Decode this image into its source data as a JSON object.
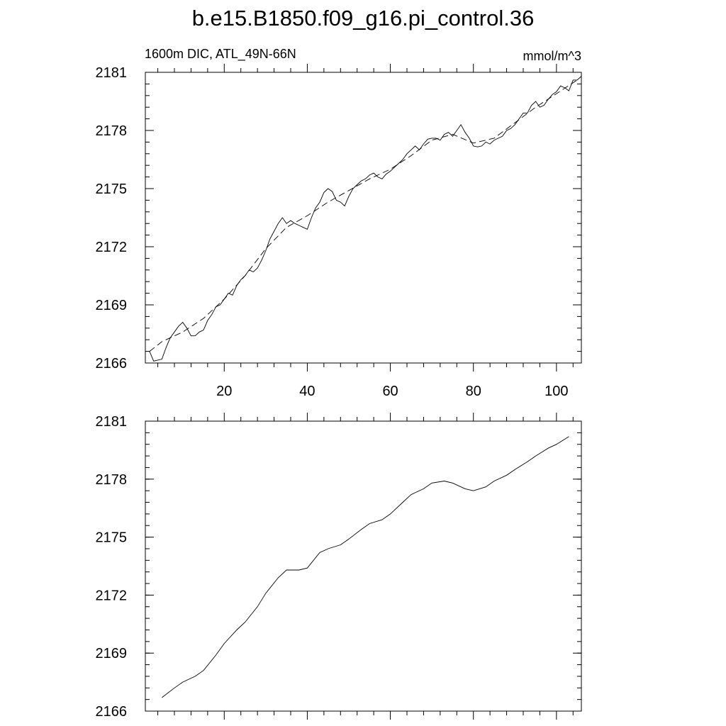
{
  "title": "b.e15.B1850.f09_g16.pi_control.36",
  "subtitle_left": "1600m DIC, ATL_49N-66N",
  "subtitle_right": "mmol/m^3",
  "chart_data": [
    {
      "type": "line",
      "title": "",
      "xlabel": "",
      "ylabel": "",
      "xlim": [
        1,
        106
      ],
      "ylim": [
        2166,
        2181
      ],
      "xticks": [
        20,
        40,
        60,
        80,
        100
      ],
      "yticks": [
        2166,
        2169,
        2172,
        2175,
        2178,
        2181
      ],
      "grid": false,
      "series": [
        {
          "style": "solid",
          "x": [
            2,
            3,
            4,
            5,
            6,
            7,
            8,
            9,
            10,
            11,
            12,
            13,
            14,
            15,
            16,
            17,
            18,
            19,
            20,
            21,
            22,
            23,
            24,
            25,
            26,
            27,
            28,
            29,
            30,
            31,
            32,
            33,
            34,
            35,
            36,
            37,
            38,
            39,
            40,
            41,
            42,
            43,
            44,
            45,
            46,
            47,
            48,
            49,
            50,
            51,
            52,
            53,
            54,
            55,
            56,
            57,
            58,
            59,
            60,
            61,
            62,
            63,
            64,
            65,
            66,
            67,
            68,
            69,
            70,
            71,
            72,
            73,
            74,
            75,
            76,
            77,
            78,
            79,
            80,
            81,
            82,
            83,
            84,
            85,
            86,
            87,
            88,
            89,
            90,
            91,
            92,
            93,
            94,
            95,
            96,
            97,
            98,
            99,
            100,
            101,
            102,
            103,
            104,
            105,
            106
          ],
          "y": [
            2166.6,
            2166.1,
            2166.15,
            2166.2,
            2166.8,
            2167.3,
            2167.6,
            2167.9,
            2168.1,
            2167.8,
            2167.4,
            2167.4,
            2167.6,
            2167.7,
            2168.2,
            2168.5,
            2168.9,
            2169.0,
            2169.3,
            2169.6,
            2169.5,
            2170.0,
            2170.3,
            2170.5,
            2170.8,
            2170.7,
            2170.9,
            2171.3,
            2171.8,
            2172.4,
            2172.8,
            2173.2,
            2173.5,
            2173.2,
            2173.35,
            2173.2,
            2173.1,
            2173.0,
            2172.9,
            2173.5,
            2174.0,
            2174.3,
            2174.8,
            2175.0,
            2174.85,
            2174.4,
            2174.3,
            2174.1,
            2174.6,
            2175.0,
            2175.2,
            2175.4,
            2175.5,
            2175.7,
            2175.8,
            2175.6,
            2175.5,
            2175.75,
            2175.9,
            2176.1,
            2176.3,
            2176.5,
            2176.8,
            2177.0,
            2177.2,
            2177.0,
            2177.3,
            2177.55,
            2177.6,
            2177.6,
            2177.5,
            2177.8,
            2177.9,
            2177.7,
            2178.0,
            2178.3,
            2177.9,
            2177.6,
            2177.2,
            2177.15,
            2177.2,
            2177.4,
            2177.3,
            2177.5,
            2177.6,
            2177.7,
            2178.0,
            2178.1,
            2178.3,
            2178.6,
            2178.9,
            2178.9,
            2179.3,
            2179.5,
            2179.2,
            2179.3,
            2179.6,
            2179.85,
            2180.0,
            2180.3,
            2180.2,
            2180.05,
            2180.6,
            2180.6,
            2180.8
          ]
        },
        {
          "style": "dashed",
          "x": [
            2,
            5,
            10,
            15,
            20,
            25,
            30,
            35,
            40,
            45,
            50,
            55,
            60,
            65,
            70,
            75,
            80,
            85,
            90,
            95,
            100,
            105
          ],
          "y": [
            2166.6,
            2167.1,
            2167.6,
            2168.3,
            2169.3,
            2170.5,
            2171.9,
            2173.0,
            2173.6,
            2174.3,
            2174.9,
            2175.5,
            2176.0,
            2176.7,
            2177.5,
            2177.8,
            2177.35,
            2177.6,
            2178.4,
            2179.2,
            2179.9,
            2180.6
          ]
        }
      ]
    },
    {
      "type": "line",
      "title": "",
      "xlabel": "",
      "ylabel": "",
      "xlim": [
        1,
        106
      ],
      "ylim": [
        2166,
        2181
      ],
      "yticks": [
        2166,
        2169,
        2172,
        2175,
        2178,
        2181
      ],
      "grid": false,
      "series": [
        {
          "style": "solid",
          "x": [
            5,
            8,
            10,
            13,
            15,
            18,
            20,
            23,
            25,
            28,
            30,
            33,
            35,
            38,
            40,
            43,
            45,
            48,
            50,
            53,
            55,
            58,
            60,
            63,
            65,
            68,
            70,
            73,
            75,
            78,
            80,
            83,
            85,
            88,
            90,
            93,
            95,
            98,
            100,
            103
          ],
          "y": [
            2166.7,
            2167.2,
            2167.5,
            2167.8,
            2168.1,
            2168.9,
            2169.5,
            2170.2,
            2170.6,
            2171.4,
            2172.1,
            2172.9,
            2173.3,
            2173.3,
            2173.4,
            2174.2,
            2174.4,
            2174.6,
            2174.9,
            2175.4,
            2175.7,
            2175.9,
            2176.2,
            2176.8,
            2177.2,
            2177.5,
            2177.8,
            2177.9,
            2177.8,
            2177.5,
            2177.4,
            2177.6,
            2177.9,
            2178.2,
            2178.5,
            2178.9,
            2179.2,
            2179.6,
            2179.8,
            2180.2
          ]
        }
      ]
    }
  ]
}
